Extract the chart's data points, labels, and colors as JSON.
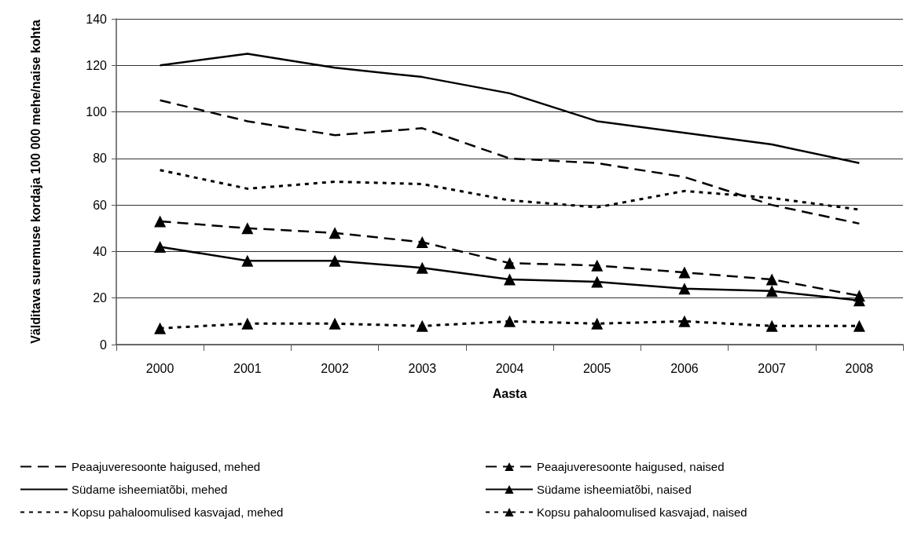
{
  "chart_data": {
    "type": "line",
    "xlabel": "Aasta",
    "ylabel": "Välditava suremuse kordaja 100 000 mehe/naise kohta",
    "categories": [
      "2000",
      "2001",
      "2002",
      "2003",
      "2004",
      "2005",
      "2006",
      "2007",
      "2008"
    ],
    "ylim": [
      0,
      140
    ],
    "yticks": [
      0,
      20,
      40,
      60,
      80,
      100,
      120,
      140
    ],
    "grid": "y",
    "legend": "bottom",
    "series": [
      {
        "name": "Peaajuveresoonte haigused, mehed",
        "color": "#000000",
        "line_style": "dashed",
        "marker": "none",
        "values": [
          105,
          96,
          90,
          93,
          80,
          78,
          72,
          60,
          52
        ]
      },
      {
        "name": "Südame isheemiatõbi, mehed",
        "color": "#000000",
        "line_style": "solid",
        "marker": "none",
        "values": [
          120,
          125,
          119,
          115,
          108,
          96,
          91,
          86,
          78
        ]
      },
      {
        "name": "Kopsu pahaloomulised kasvajad, mehed",
        "color": "#000000",
        "line_style": "dotted",
        "marker": "none",
        "values": [
          75,
          67,
          70,
          69,
          62,
          59,
          66,
          63,
          58
        ]
      },
      {
        "name": "Peaajuveresoonte haigused, naised",
        "color": "#000000",
        "line_style": "dashed",
        "marker": "triangle",
        "values": [
          53,
          50,
          48,
          44,
          35,
          34,
          31,
          28,
          21
        ]
      },
      {
        "name": "Südame isheemiatõbi, naised",
        "color": "#000000",
        "line_style": "solid",
        "marker": "triangle",
        "values": [
          42,
          36,
          36,
          33,
          28,
          27,
          24,
          23,
          19
        ]
      },
      {
        "name": "Kopsu pahaloomulised kasvajad, naised",
        "color": "#000000",
        "line_style": "dotted",
        "marker": "triangle",
        "values": [
          7,
          9,
          9,
          8,
          10,
          9,
          10,
          8,
          8
        ]
      }
    ]
  }
}
